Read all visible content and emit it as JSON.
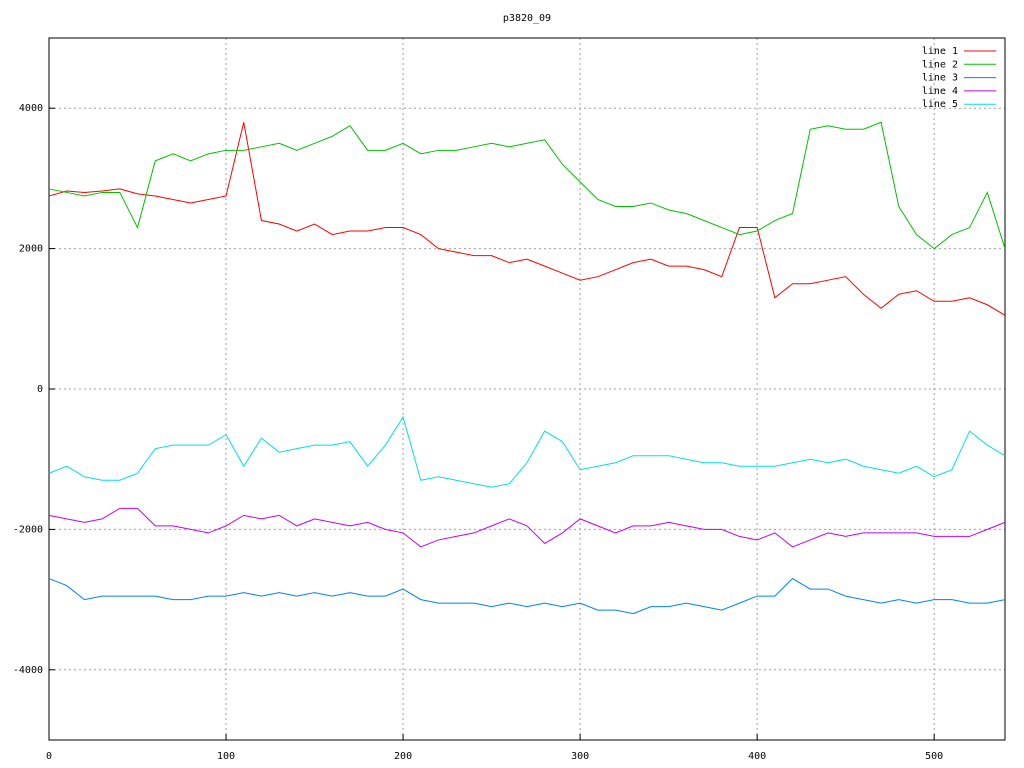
{
  "chart_data": {
    "type": "line",
    "title": "p3820_09",
    "x": [
      0,
      10,
      20,
      30,
      40,
      50,
      60,
      70,
      80,
      90,
      100,
      110,
      120,
      130,
      140,
      150,
      160,
      170,
      180,
      190,
      200,
      210,
      220,
      230,
      240,
      250,
      260,
      270,
      280,
      290,
      300,
      310,
      320,
      330,
      340,
      350,
      360,
      370,
      380,
      390,
      400,
      410,
      420,
      430,
      440,
      450,
      460,
      470,
      480,
      490,
      500,
      510,
      520,
      530,
      540
    ],
    "series": [
      {
        "name": "line 1",
        "color": "#ff0000",
        "values": [
          2750,
          2820,
          2800,
          2820,
          2850,
          2780,
          2750,
          2700,
          2650,
          2700,
          2750,
          3800,
          2400,
          2350,
          2250,
          2350,
          2200,
          2250,
          2250,
          2300,
          2300,
          2200,
          2000,
          1950,
          1900,
          1900,
          1800,
          1850,
          1750,
          1650,
          1550,
          1600,
          1700,
          1800,
          1850,
          1750,
          1750,
          1700,
          1600,
          2300,
          2300,
          1300,
          1500,
          1500,
          1550,
          1600,
          1350,
          1150,
          1350,
          1400,
          1250,
          1250,
          1300,
          1200,
          1050
        ]
      },
      {
        "name": "line 2",
        "color": "#00c000",
        "values": [
          2850,
          2800,
          2750,
          2800,
          2800,
          2300,
          3250,
          3350,
          3250,
          3350,
          3400,
          3400,
          3450,
          3500,
          3400,
          3500,
          3600,
          3750,
          3400,
          3400,
          3500,
          3350,
          3400,
          3400,
          3450,
          3500,
          3450,
          3500,
          3550,
          3200,
          2950,
          2700,
          2600,
          2600,
          2650,
          2550,
          2500,
          2400,
          2300,
          2200,
          2250,
          2400,
          2500,
          3700,
          3750,
          3700,
          3700,
          3800,
          2600,
          2200,
          2000,
          2200,
          2300,
          2800,
          2000
        ]
      },
      {
        "name": "line 3",
        "color": "#0080ff",
        "values": [
          -2700,
          -2800,
          -3000,
          -2950,
          -2950,
          -2950,
          -2950,
          -3000,
          -3000,
          -2950,
          -2950,
          -2900,
          -2950,
          -2900,
          -2950,
          -2900,
          -2950,
          -2900,
          -2950,
          -2950,
          -2850,
          -3000,
          -3050,
          -3050,
          -3050,
          -3100,
          -3050,
          -3100,
          -3050,
          -3100,
          -3050,
          -3150,
          -3150,
          -3200,
          -3100,
          -3100,
          -3050,
          -3100,
          -3150,
          -3050,
          -2950,
          -2950,
          -2700,
          -2850,
          -2850,
          -2950,
          -3000,
          -3050,
          -3000,
          -3050,
          -3000,
          -3000,
          -3050,
          -3050,
          -3000
        ]
      },
      {
        "name": "line 4",
        "color": "#c000ff",
        "values": [
          -1800,
          -1850,
          -1900,
          -1850,
          -1700,
          -1700,
          -1950,
          -1950,
          -2000,
          -2050,
          -1950,
          -1800,
          -1850,
          -1800,
          -1950,
          -1850,
          -1900,
          -1950,
          -1900,
          -2000,
          -2050,
          -2250,
          -2150,
          -2100,
          -2050,
          -1950,
          -1850,
          -1950,
          -2200,
          -2050,
          -1850,
          -1950,
          -2050,
          -1950,
          -1950,
          -1900,
          -1950,
          -2000,
          -2000,
          -2100,
          -2150,
          -2050,
          -2250,
          -2150,
          -2050,
          -2100,
          -2050,
          -2050,
          -2050,
          -2050,
          -2100,
          -2100,
          -2100,
          -2000,
          -1900
        ]
      },
      {
        "name": "line 5",
        "color": "#00e0e0",
        "values": [
          -1200,
          -1100,
          -1250,
          -1300,
          -1300,
          -1200,
          -850,
          -800,
          -800,
          -800,
          -650,
          -1100,
          -700,
          -900,
          -850,
          -800,
          -800,
          -750,
          -1100,
          -800,
          -400,
          -1300,
          -1250,
          -1300,
          -1350,
          -1400,
          -1350,
          -1050,
          -600,
          -750,
          -1150,
          -1100,
          -1050,
          -950,
          -950,
          -950,
          -1000,
          -1050,
          -1050,
          -1100,
          -1100,
          -1100,
          -1050,
          -1000,
          -1050,
          -1000,
          -1100,
          -1150,
          -1200,
          -1100,
          -1250,
          -1150,
          -600,
          -800,
          -950
        ]
      }
    ],
    "xlim": [
      0,
      540
    ],
    "ylim": [
      -5000,
      5000
    ],
    "xticks": [
      0,
      100,
      200,
      300,
      400,
      500
    ],
    "yticks": [
      -4000,
      -2000,
      0,
      2000,
      4000
    ],
    "grid": true,
    "legend": "top-right"
  }
}
